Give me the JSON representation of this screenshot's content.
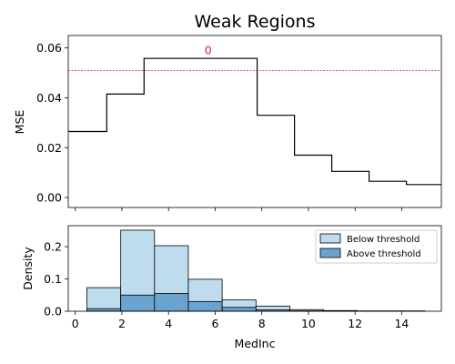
{
  "chart_data": [
    {
      "type": "line",
      "step": true,
      "title": "Weak Regions",
      "xlabel": "",
      "ylabel": "MSE",
      "xlim": [
        -0.3,
        15.7
      ],
      "ylim": [
        -0.004,
        0.065
      ],
      "yticks": [
        0.0,
        0.02,
        0.04,
        0.06
      ],
      "ytick_labels": [
        "0.00",
        "0.02",
        "0.04",
        "0.06"
      ],
      "xticks": [
        0,
        2,
        4,
        6,
        8,
        10,
        12,
        14
      ],
      "show_xtick_labels": false,
      "grid": false,
      "threshold": 0.051,
      "threshold_color": "#d62728",
      "line_color": "#000000",
      "steps": [
        {
          "x0": -0.3,
          "x1": 1.35,
          "y": 0.0265
        },
        {
          "x0": 1.35,
          "x1": 2.95,
          "y": 0.0415
        },
        {
          "x0": 2.95,
          "x1": 7.8,
          "y": 0.0558
        },
        {
          "x0": 7.8,
          "x1": 9.4,
          "y": 0.033
        },
        {
          "x0": 9.4,
          "x1": 11.0,
          "y": 0.017
        },
        {
          "x0": 11.0,
          "x1": 12.6,
          "y": 0.0105
        },
        {
          "x0": 12.6,
          "x1": 14.2,
          "y": 0.0065
        },
        {
          "x0": 14.2,
          "x1": 15.7,
          "y": 0.0052
        }
      ],
      "annotations": [
        {
          "text": "0",
          "x": 5.7,
          "y": 0.0575,
          "color": "#d62728"
        }
      ]
    },
    {
      "type": "bar",
      "histogram": true,
      "xlabel": "MedInc",
      "ylabel": "Density",
      "xlim": [
        -0.3,
        15.7
      ],
      "ylim": [
        0,
        0.265
      ],
      "xticks": [
        0,
        2,
        4,
        6,
        8,
        10,
        12,
        14
      ],
      "xtick_labels": [
        "0",
        "2",
        "4",
        "6",
        "8",
        "10",
        "12",
        "14"
      ],
      "yticks": [
        0.0,
        0.1,
        0.2
      ],
      "ytick_labels": [
        "0.0",
        "0.1",
        "0.2"
      ],
      "grid": false,
      "legend_position": "top-right",
      "bin_edges": [
        0.5,
        1.95,
        3.4,
        4.85,
        6.3,
        7.75,
        9.2,
        10.65,
        12.1,
        13.55,
        15.0
      ],
      "series": [
        {
          "name": "Below threshold",
          "color": "#bfdcee",
          "values": [
            0.073,
            0.251,
            0.203,
            0.099,
            0.035,
            0.016,
            0.005,
            0.002,
            0.001,
            0.001
          ]
        },
        {
          "name": "Above threshold",
          "color": "#6aa3cf",
          "values": [
            0.008,
            0.05,
            0.055,
            0.03,
            0.012,
            0.004,
            0.001,
            0.0,
            0.0,
            0.0
          ]
        }
      ]
    }
  ]
}
